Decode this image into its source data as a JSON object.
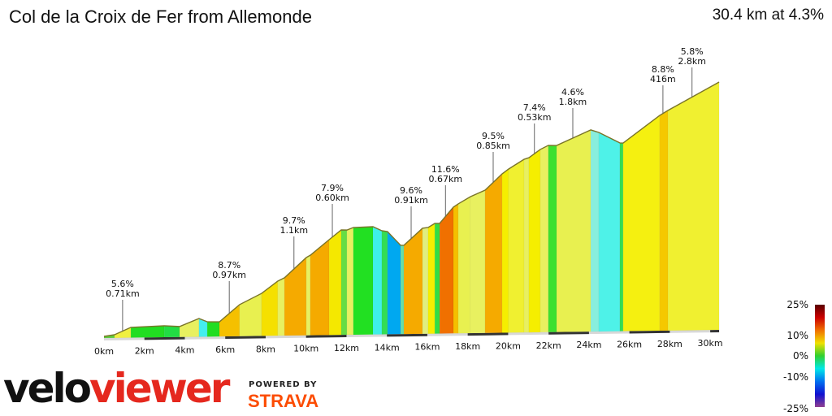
{
  "header": {
    "title": "Col de la Croix de Fer from Allemonde",
    "summary": "30.4 km at 4.3%"
  },
  "branding": {
    "logo_velo": "velo",
    "logo_viewer": "viewer",
    "powered_by": "POWERED BY",
    "strava": "STRAVA"
  },
  "chart_data": {
    "type": "area",
    "title": "Col de la Croix de Fer from Allemonde",
    "xlabel": "",
    "ylabel": "",
    "x_unit": "km",
    "xlim": [
      0,
      30.4
    ],
    "x_ticks": [
      "0km",
      "2km",
      "4km",
      "6km",
      "8km",
      "10km",
      "12km",
      "14km",
      "16km",
      "18km",
      "20km",
      "22km",
      "24km",
      "26km",
      "28km",
      "30km"
    ],
    "profile_points_km_elev": [
      [
        0,
        760
      ],
      [
        0.52,
        768
      ],
      [
        1.33,
        806
      ],
      [
        2.98,
        812
      ],
      [
        3.74,
        807
      ],
      [
        4.7,
        848
      ],
      [
        5.11,
        830
      ],
      [
        5.71,
        829
      ],
      [
        6.71,
        919
      ],
      [
        7.8,
        977
      ],
      [
        8.6,
        1041
      ],
      [
        8.93,
        1058
      ],
      [
        10.01,
        1164
      ],
      [
        10.21,
        1176
      ],
      [
        11.14,
        1257
      ],
      [
        11.74,
        1308
      ],
      [
        12.02,
        1307
      ],
      [
        12.34,
        1320
      ],
      [
        13.31,
        1323
      ],
      [
        13.75,
        1301
      ],
      [
        14.03,
        1296
      ],
      [
        14.68,
        1222
      ],
      [
        14.84,
        1222
      ],
      [
        15.76,
        1311
      ],
      [
        16.04,
        1315
      ],
      [
        16.37,
        1336
      ],
      [
        16.61,
        1336
      ],
      [
        17.29,
        1421
      ],
      [
        17.53,
        1438
      ],
      [
        18.13,
        1475
      ],
      [
        18.86,
        1509
      ],
      [
        19.7,
        1594
      ],
      [
        20.02,
        1619
      ],
      [
        20.79,
        1670
      ],
      [
        21.03,
        1678
      ],
      [
        21.59,
        1721
      ],
      [
        21.99,
        1742
      ],
      [
        22.4,
        1741
      ],
      [
        24.09,
        1821
      ],
      [
        24.49,
        1807
      ],
      [
        25.53,
        1750
      ],
      [
        25.69,
        1749
      ],
      [
        27.5,
        1893
      ],
      [
        27.91,
        1919
      ],
      [
        30.44,
        2066
      ]
    ],
    "segment_colors": [
      "#5ccc3c",
      "#f0f040",
      "#22dd22",
      "#22dd44",
      "#e8f060",
      "#44eeee",
      "#22dd22",
      "#f5c000",
      "#e8f050",
      "#f5e000",
      "#e8f060",
      "#f5aa00",
      "#e8f060",
      "#f5aa00",
      "#f5e800",
      "#66dd44",
      "#e8f060",
      "#22e022",
      "#3ef0e8",
      "#33dd55",
      "#00a8f0",
      "#66ddaa",
      "#f5aa00",
      "#e0ee80",
      "#f5ee00",
      "#33dd44",
      "#f07000",
      "#f5c000",
      "#e8f050",
      "#e8f060",
      "#f5aa00",
      "#f5ee00",
      "#f0f030",
      "#e8f060",
      "#f5ee00",
      "#e8f060",
      "#3ce030",
      "#e8f050",
      "#88eedd",
      "#4ef2e8",
      "#33dd55",
      "#f5f010",
      "#f5c800",
      "#f0f030"
    ],
    "annotations": [
      {
        "km": 0.92,
        "grade": "5.6%",
        "length": "0.71km"
      },
      {
        "km": 6.2,
        "grade": "8.7%",
        "length": "0.97km"
      },
      {
        "km": 9.4,
        "grade": "9.7%",
        "length": "1.1km"
      },
      {
        "km": 11.3,
        "grade": "7.9%",
        "length": "0.60km"
      },
      {
        "km": 15.2,
        "grade": "9.6%",
        "length": "0.91km"
      },
      {
        "km": 16.9,
        "grade": "11.6%",
        "length": "0.67km"
      },
      {
        "km": 19.26,
        "grade": "9.5%",
        "length": "0.85km"
      },
      {
        "km": 21.3,
        "grade": "7.4%",
        "length": "0.53km"
      },
      {
        "km": 23.2,
        "grade": "4.6%",
        "length": "1.8km"
      },
      {
        "km": 27.66,
        "grade": "8.8%",
        "length": "416m"
      },
      {
        "km": 29.1,
        "grade": "5.8%",
        "length": "2.8km"
      }
    ],
    "gradient_legend": {
      "labels": [
        "25%",
        "10%",
        "0%",
        "-10%",
        "-25%"
      ],
      "colors": [
        "#5a0000",
        "#cc0000",
        "#f07000",
        "#f0e000",
        "#30d030",
        "#00e8e8",
        "#0070f0",
        "#1010d0",
        "#904090"
      ]
    }
  }
}
